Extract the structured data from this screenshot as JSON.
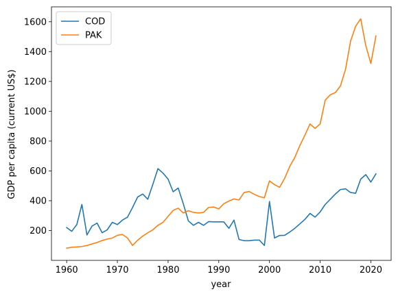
{
  "chart_data": {
    "type": "line",
    "title": "",
    "xlabel": "year",
    "ylabel": "GDP per capita (current US$)",
    "xlim": [
      1957,
      2024
    ],
    "ylim": [
      0,
      1700
    ],
    "xticks": [
      1960,
      1970,
      1980,
      1990,
      2000,
      2010,
      2020
    ],
    "yticks": [
      200,
      400,
      600,
      800,
      1000,
      1200,
      1400,
      1600
    ],
    "grid": false,
    "legend": "top-left",
    "x": [
      1960,
      1961,
      1962,
      1963,
      1964,
      1965,
      1966,
      1967,
      1968,
      1969,
      1970,
      1971,
      1972,
      1973,
      1974,
      1975,
      1976,
      1977,
      1978,
      1979,
      1980,
      1981,
      1982,
      1983,
      1984,
      1985,
      1986,
      1987,
      1988,
      1989,
      1990,
      1991,
      1992,
      1993,
      1994,
      1995,
      1996,
      1997,
      1998,
      1999,
      2000,
      2001,
      2002,
      2003,
      2004,
      2005,
      2006,
      2007,
      2008,
      2009,
      2010,
      2011,
      2012,
      2013,
      2014,
      2015,
      2016,
      2017,
      2018,
      2019,
      2020,
      2021
    ],
    "series": [
      {
        "name": "COD",
        "color": "#1f77b4",
        "values": [
          220,
          195,
          240,
          375,
          170,
          230,
          250,
          185,
          205,
          255,
          240,
          270,
          290,
          355,
          425,
          445,
          410,
          510,
          615,
          585,
          545,
          460,
          485,
          380,
          265,
          235,
          255,
          235,
          260,
          258,
          258,
          258,
          215,
          270,
          140,
          132,
          132,
          136,
          136,
          100,
          395,
          150,
          167,
          168,
          190,
          215,
          245,
          275,
          315,
          290,
          325,
          375,
          410,
          445,
          475,
          480,
          455,
          450,
          545,
          575,
          525,
          580
        ]
      },
      {
        "name": "PAK",
        "color": "#ff7f0e",
        "values": [
          82,
          88,
          90,
          93,
          100,
          110,
          120,
          133,
          143,
          150,
          168,
          174,
          150,
          100,
          135,
          163,
          185,
          205,
          235,
          255,
          295,
          335,
          350,
          318,
          333,
          322,
          318,
          322,
          355,
          358,
          345,
          380,
          398,
          412,
          405,
          455,
          462,
          443,
          428,
          420,
          533,
          508,
          490,
          550,
          630,
          690,
          770,
          840,
          915,
          885,
          915,
          1075,
          1110,
          1125,
          1170,
          1280,
          1470,
          1570,
          1620,
          1440,
          1320,
          1505
        ]
      }
    ]
  }
}
